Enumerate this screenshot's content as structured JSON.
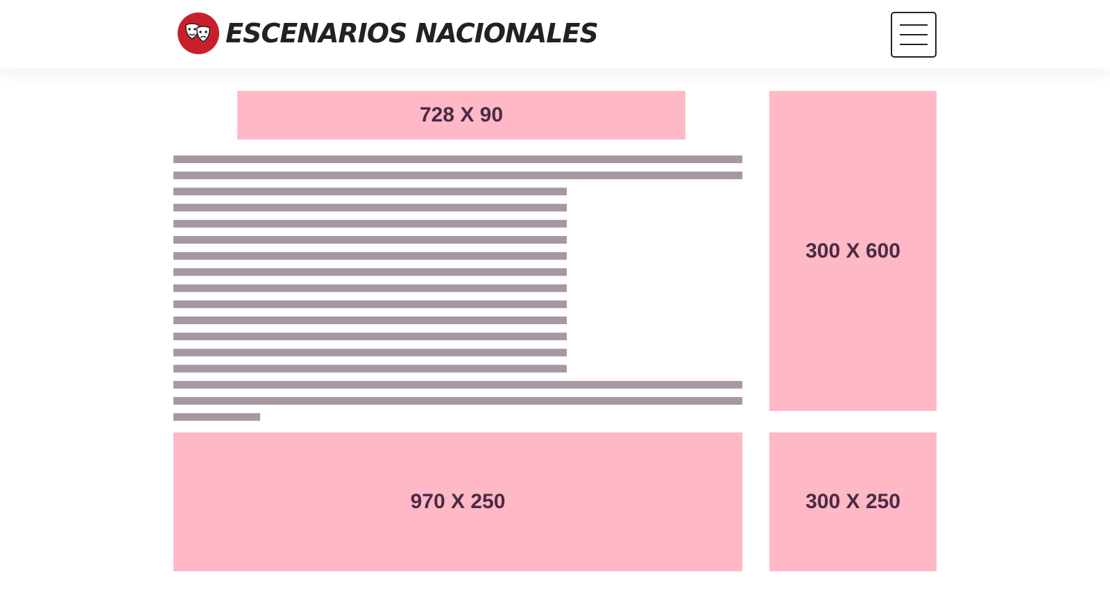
{
  "header": {
    "brand": "ESCENARIOS NACIONALES"
  },
  "ads": [
    {
      "label": "728 X 90"
    },
    {
      "label": "300 X 600"
    },
    {
      "label": "970 X 250"
    },
    {
      "label": "300 X 250"
    }
  ]
}
